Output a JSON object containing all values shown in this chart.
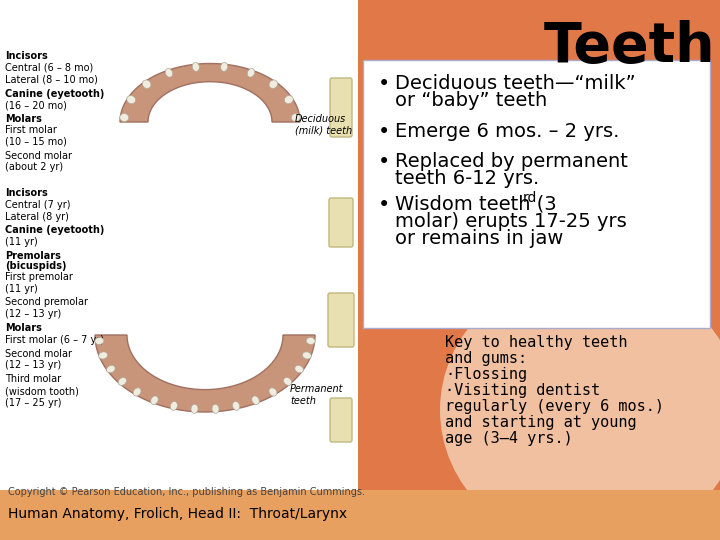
{
  "title": "Teeth",
  "title_fontsize": 40,
  "title_color": "#000000",
  "bg_color": "#e07848",
  "left_panel_bg": "#ffffff",
  "bullet_box_bg": "#ffffff",
  "bullet_box_border": "#aaaacc",
  "footer_bg": "#e8a060",
  "bullet_points": [
    "Deciduous teeth—“milk”\nor “baby” teeth",
    "Emerge 6 mos. – 2 yrs.",
    "Replaced by permanent\nteeth 6-12 yrs.",
    "Wisdom teeth (3\nrd\nmolar) erupts 17-25 yrs\nor remains in jaw"
  ],
  "bullet_fontsize": 14,
  "key_text_lines": [
    "Key to healthy teeth",
    "and gums:",
    "·Flossing",
    "·Visiting dentist",
    "regularly (every 6 mos.)",
    "and starting at young",
    "age (3–4 yrs.)"
  ],
  "key_fontsize": 11,
  "left_labels_top": [
    [
      "Incisors",
      true
    ],
    [
      "Central (6 – 8 mo)",
      false
    ],
    [
      "Lateral (8 – 10 mo)",
      false
    ],
    [
      "Canine (eyetooth)",
      true
    ],
    [
      "(16 – 20 mo)",
      false
    ],
    [
      "Molars",
      true
    ],
    [
      "First molar",
      false
    ],
    [
      "(10 – 15 mo)",
      false
    ],
    [
      "Second molar",
      false
    ],
    [
      "(about 2 yr)",
      false
    ]
  ],
  "left_labels_bottom": [
    [
      "Incisors",
      true
    ],
    [
      "Central (7 yr)",
      false
    ],
    [
      "Lateral (8 yr)",
      false
    ],
    [
      "Canine (eyetooth)",
      true
    ],
    [
      "(11 yr)",
      false
    ],
    [
      "Premolars",
      true
    ],
    [
      "(bicuspids)",
      true
    ],
    [
      "First premolar",
      false
    ],
    [
      "(11 yr)",
      false
    ],
    [
      "Second premolar",
      false
    ],
    [
      "(12 – 13 yr)",
      false
    ],
    [
      "Molars",
      true
    ],
    [
      "First molar (6 – 7 yr)",
      false
    ],
    [
      "Second molar",
      false
    ],
    [
      "(12 – 13 yr)",
      false
    ],
    [
      "Third molar",
      false
    ],
    [
      "(wisdom tooth)",
      false
    ],
    [
      "(17 – 25 yr)",
      false
    ]
  ],
  "copyright_text": "Copyright © Pearson Education, Inc., publishing as Benjamin Cummings.",
  "footer_text": "Human Anatomy, Frolich, Head II:  Throat/Larynx",
  "footer_fontsize": 10,
  "copyright_fontsize": 7,
  "deciduous_label": "Deciduous\n(milk) teeth",
  "permanent_label": "Permanent\nteeth",
  "gum_color": "#c8957a",
  "tooth_color": "#f0ece0",
  "tooth_outline": "#b0a898",
  "wisdom_tooth_color": "#e8e0b0",
  "wisdom_tooth_edge": "#c0b880"
}
